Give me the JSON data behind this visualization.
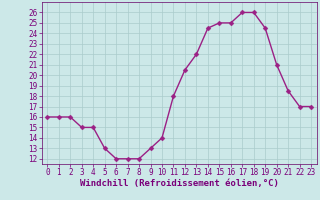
{
  "x": [
    0,
    1,
    2,
    3,
    4,
    5,
    6,
    7,
    8,
    9,
    10,
    11,
    12,
    13,
    14,
    15,
    16,
    17,
    18,
    19,
    20,
    21,
    22,
    23
  ],
  "y": [
    16,
    16,
    16,
    15,
    15,
    13,
    12,
    12,
    12,
    13,
    14,
    18,
    20.5,
    22,
    24.5,
    25,
    25,
    26,
    26,
    24.5,
    21,
    18.5,
    17,
    17
  ],
  "line_color": "#9b2085",
  "marker_color": "#9b2085",
  "bg_color": "#cce8e8",
  "grid_color": "#aacccc",
  "xlabel": "Windchill (Refroidissement éolien,°C)",
  "ylim": [
    11.5,
    27
  ],
  "xlim": [
    -0.5,
    23.5
  ],
  "yticks": [
    12,
    13,
    14,
    15,
    16,
    17,
    18,
    19,
    20,
    21,
    22,
    23,
    24,
    25,
    26
  ],
  "xticks": [
    0,
    1,
    2,
    3,
    4,
    5,
    6,
    7,
    8,
    9,
    10,
    11,
    12,
    13,
    14,
    15,
    16,
    17,
    18,
    19,
    20,
    21,
    22,
    23
  ],
  "tick_fontsize": 5.5,
  "xlabel_fontsize": 6.5,
  "marker_size": 2.5,
  "line_width": 1.0
}
